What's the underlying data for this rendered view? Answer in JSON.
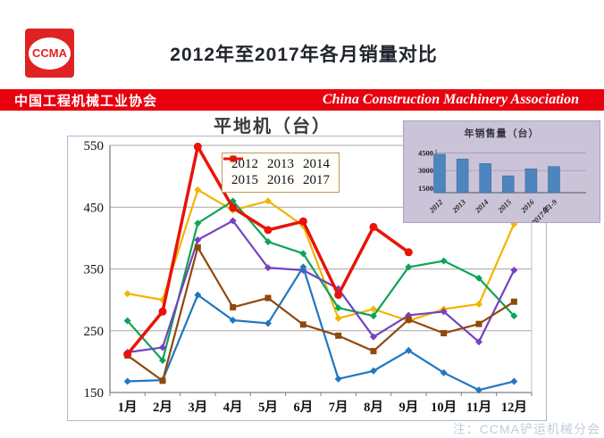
{
  "header": {
    "logo_text": "CCMA",
    "title": "2012年至2017年各月销量对比"
  },
  "banner": {
    "cn": "中国工程机械工业协会",
    "en": "China Construction Machinery Association",
    "bg": "#e8000f"
  },
  "watermark": "注：CCMA铲运机械分会",
  "chart_data": [
    {
      "type": "line",
      "title": "平地机（台）",
      "categories": [
        "1月",
        "2月",
        "3月",
        "4月",
        "5月",
        "6月",
        "7月",
        "8月",
        "9月",
        "10月",
        "11月",
        "12月"
      ],
      "ylim": [
        150,
        550
      ],
      "yticks": [
        150,
        250,
        350,
        450,
        550
      ],
      "grid": true,
      "legend_position": "top-center",
      "series": [
        {
          "name": "2012",
          "color": "#f3b300",
          "marker": "diamond",
          "line_width": 2.2,
          "values": [
            310,
            300,
            478,
            445,
            460,
            420,
            270,
            285,
            266,
            285,
            293,
            423
          ]
        },
        {
          "name": "2013",
          "color": "#0ca457",
          "marker": "diamond",
          "line_width": 2.2,
          "values": [
            266,
            202,
            424,
            460,
            394,
            375,
            287,
            274,
            353,
            363,
            335,
            274
          ]
        },
        {
          "name": "2014",
          "color": "#7541c0",
          "marker": "diamond",
          "line_width": 2.2,
          "values": [
            215,
            223,
            397,
            428,
            352,
            348,
            318,
            240,
            275,
            281,
            232,
            348
          ]
        },
        {
          "name": "2015",
          "color": "#2176c0",
          "marker": "diamond",
          "line_width": 2.2,
          "values": [
            168,
            170,
            308,
            267,
            262,
            353,
            172,
            185,
            218,
            182,
            154,
            168
          ]
        },
        {
          "name": "2016",
          "color": "#90480b",
          "marker": "square",
          "line_width": 2.2,
          "values": [
            210,
            169,
            385,
            288,
            303,
            260,
            242,
            217,
            268,
            246,
            261,
            297
          ]
        },
        {
          "name": "2017",
          "color": "#e91309",
          "marker": "circle",
          "line_width": 3.5,
          "values": [
            212,
            281,
            548,
            449,
            413,
            427,
            308,
            418,
            377
          ]
        }
      ]
    },
    {
      "type": "bar",
      "title": "年销售量（台）",
      "categories": [
        "2012",
        "2013",
        "2014",
        "2015",
        "2016",
        "2017年1-9"
      ],
      "values": [
        4400,
        4000,
        3600,
        2550,
        3150,
        3350
      ],
      "yticks": [
        1500,
        3000,
        4500
      ],
      "ylim": [
        1100,
        4700
      ],
      "bar_color": "#4e85bf",
      "background": "#cbc4d9"
    }
  ]
}
